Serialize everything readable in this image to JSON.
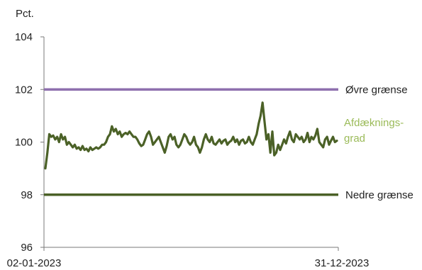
{
  "chart_data": {
    "type": "line",
    "unit_label": "Pct.",
    "ylim": [
      96,
      104
    ],
    "yticks": [
      "96",
      "98",
      "100",
      "102",
      "104"
    ],
    "x_labels": [
      "02-01-2023",
      "31-12-2023"
    ],
    "grid": false,
    "reference_lines": [
      {
        "label": "Øvre grænse",
        "value": 102,
        "color": "#8e6fae"
      },
      {
        "label": "Nedre grænse",
        "value": 98,
        "color": "#4b6127"
      }
    ],
    "series": [
      {
        "label_lines": [
          "Afdæknings-",
          "grad"
        ],
        "label_color": "#9bbb59",
        "color": "#4b6127",
        "y": [
          99.0,
          99.6,
          100.3,
          100.2,
          100.25,
          100.1,
          100.2,
          100.0,
          100.3,
          100.1,
          100.2,
          99.9,
          100.0,
          99.9,
          99.8,
          99.9,
          99.75,
          99.8,
          99.7,
          99.85,
          99.7,
          99.75,
          99.65,
          99.8,
          99.7,
          99.75,
          99.8,
          99.75,
          99.8,
          99.9,
          99.9,
          100.0,
          100.2,
          100.3,
          100.6,
          100.4,
          100.5,
          100.3,
          100.4,
          100.2,
          100.3,
          100.35,
          100.3,
          100.4,
          100.3,
          100.2,
          100.2,
          100.1,
          99.95,
          99.85,
          99.9,
          100.1,
          100.3,
          100.4,
          100.2,
          99.9,
          100.0,
          100.1,
          100.2,
          100.0,
          99.8,
          99.6,
          99.85,
          100.2,
          100.3,
          100.1,
          100.2,
          99.9,
          99.8,
          99.9,
          100.1,
          100.3,
          100.2,
          100.0,
          99.9,
          100.0,
          100.2,
          99.9,
          99.8,
          99.6,
          99.8,
          100.1,
          100.3,
          100.1,
          100.0,
          100.2,
          99.95,
          99.9,
          100.0,
          100.1,
          99.95,
          100.05,
          100.1,
          99.9,
          100.0,
          100.05,
          100.2,
          100.0,
          100.1,
          99.9,
          100.05,
          100.1,
          99.95,
          100.0,
          100.2,
          100.0,
          99.9,
          100.1,
          100.3,
          100.7,
          101.0,
          101.5,
          100.8,
          100.1,
          100.3,
          99.6,
          100.4,
          99.5,
          99.6,
          99.9,
          99.7,
          99.9,
          100.1,
          99.95,
          100.2,
          100.4,
          100.1,
          100.0,
          100.3,
          100.2,
          100.1,
          100.2,
          100.0,
          100.1,
          100.35,
          100.0,
          100.2,
          100.1,
          100.25,
          100.5,
          100.0,
          99.9,
          99.8,
          100.1,
          100.2,
          99.9,
          100.05,
          100.2,
          100.0,
          100.05
        ]
      }
    ]
  }
}
